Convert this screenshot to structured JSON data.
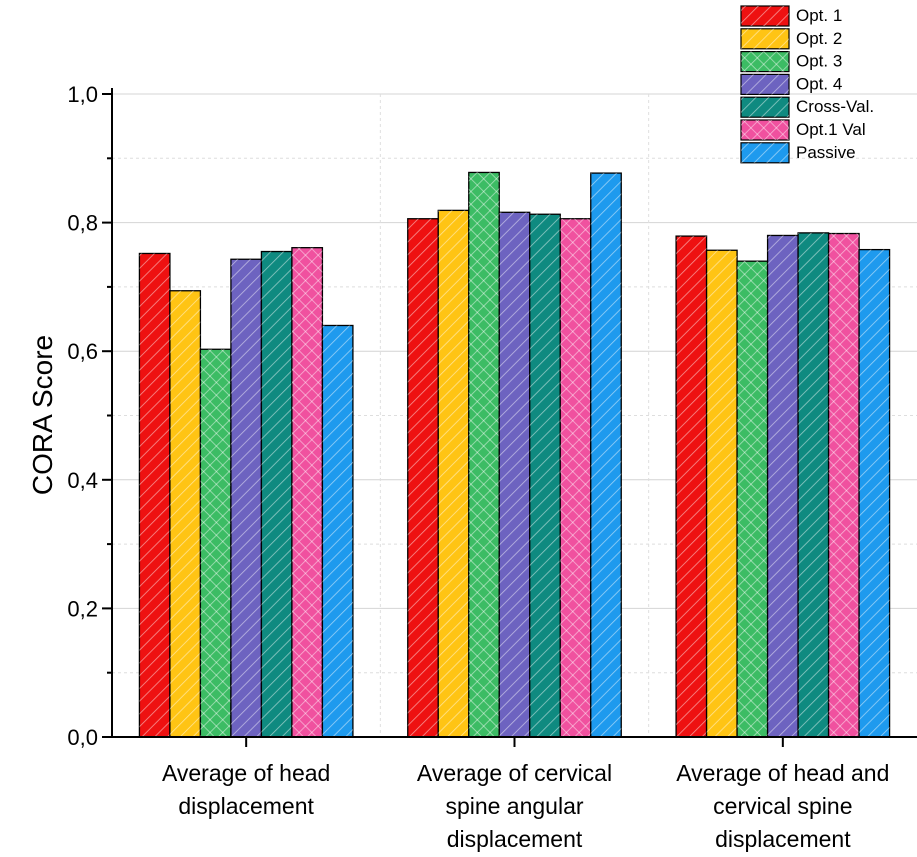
{
  "chart_data": {
    "type": "bar",
    "ylabel": "CORA Score",
    "xlabel": "",
    "ylim": [
      0,
      1.0
    ],
    "yticks": [
      "0,0",
      "0,2",
      "0,4",
      "0,6",
      "0,8",
      "1,0"
    ],
    "grid": true,
    "legend_position": "top-right",
    "categories": [
      [
        "Average of head",
        "displacement"
      ],
      [
        "Average of cervical",
        "spine angular",
        "displacement"
      ],
      [
        "Average of head and",
        "cervical spine",
        "displacement"
      ]
    ],
    "series": [
      {
        "name": "Opt. 1",
        "color": "#ee1111",
        "values": [
          0.752,
          0.806,
          0.779
        ]
      },
      {
        "name": "Opt. 2",
        "color": "#ffc414",
        "values": [
          0.694,
          0.819,
          0.757
        ]
      },
      {
        "name": "Opt. 3",
        "color": "#3cbc64",
        "values": [
          0.603,
          0.878,
          0.74
        ]
      },
      {
        "name": "Opt. 4",
        "color": "#6d63c0",
        "values": [
          0.743,
          0.816,
          0.78
        ]
      },
      {
        "name": "Cross-Val.",
        "color": "#0f8a80",
        "values": [
          0.755,
          0.813,
          0.784
        ]
      },
      {
        "name": "Opt.1 Val",
        "color": "#f0519f",
        "values": [
          0.761,
          0.806,
          0.783
        ]
      },
      {
        "name": "Passive",
        "color": "#1e9aee",
        "values": [
          0.64,
          0.877,
          0.758
        ]
      }
    ]
  }
}
